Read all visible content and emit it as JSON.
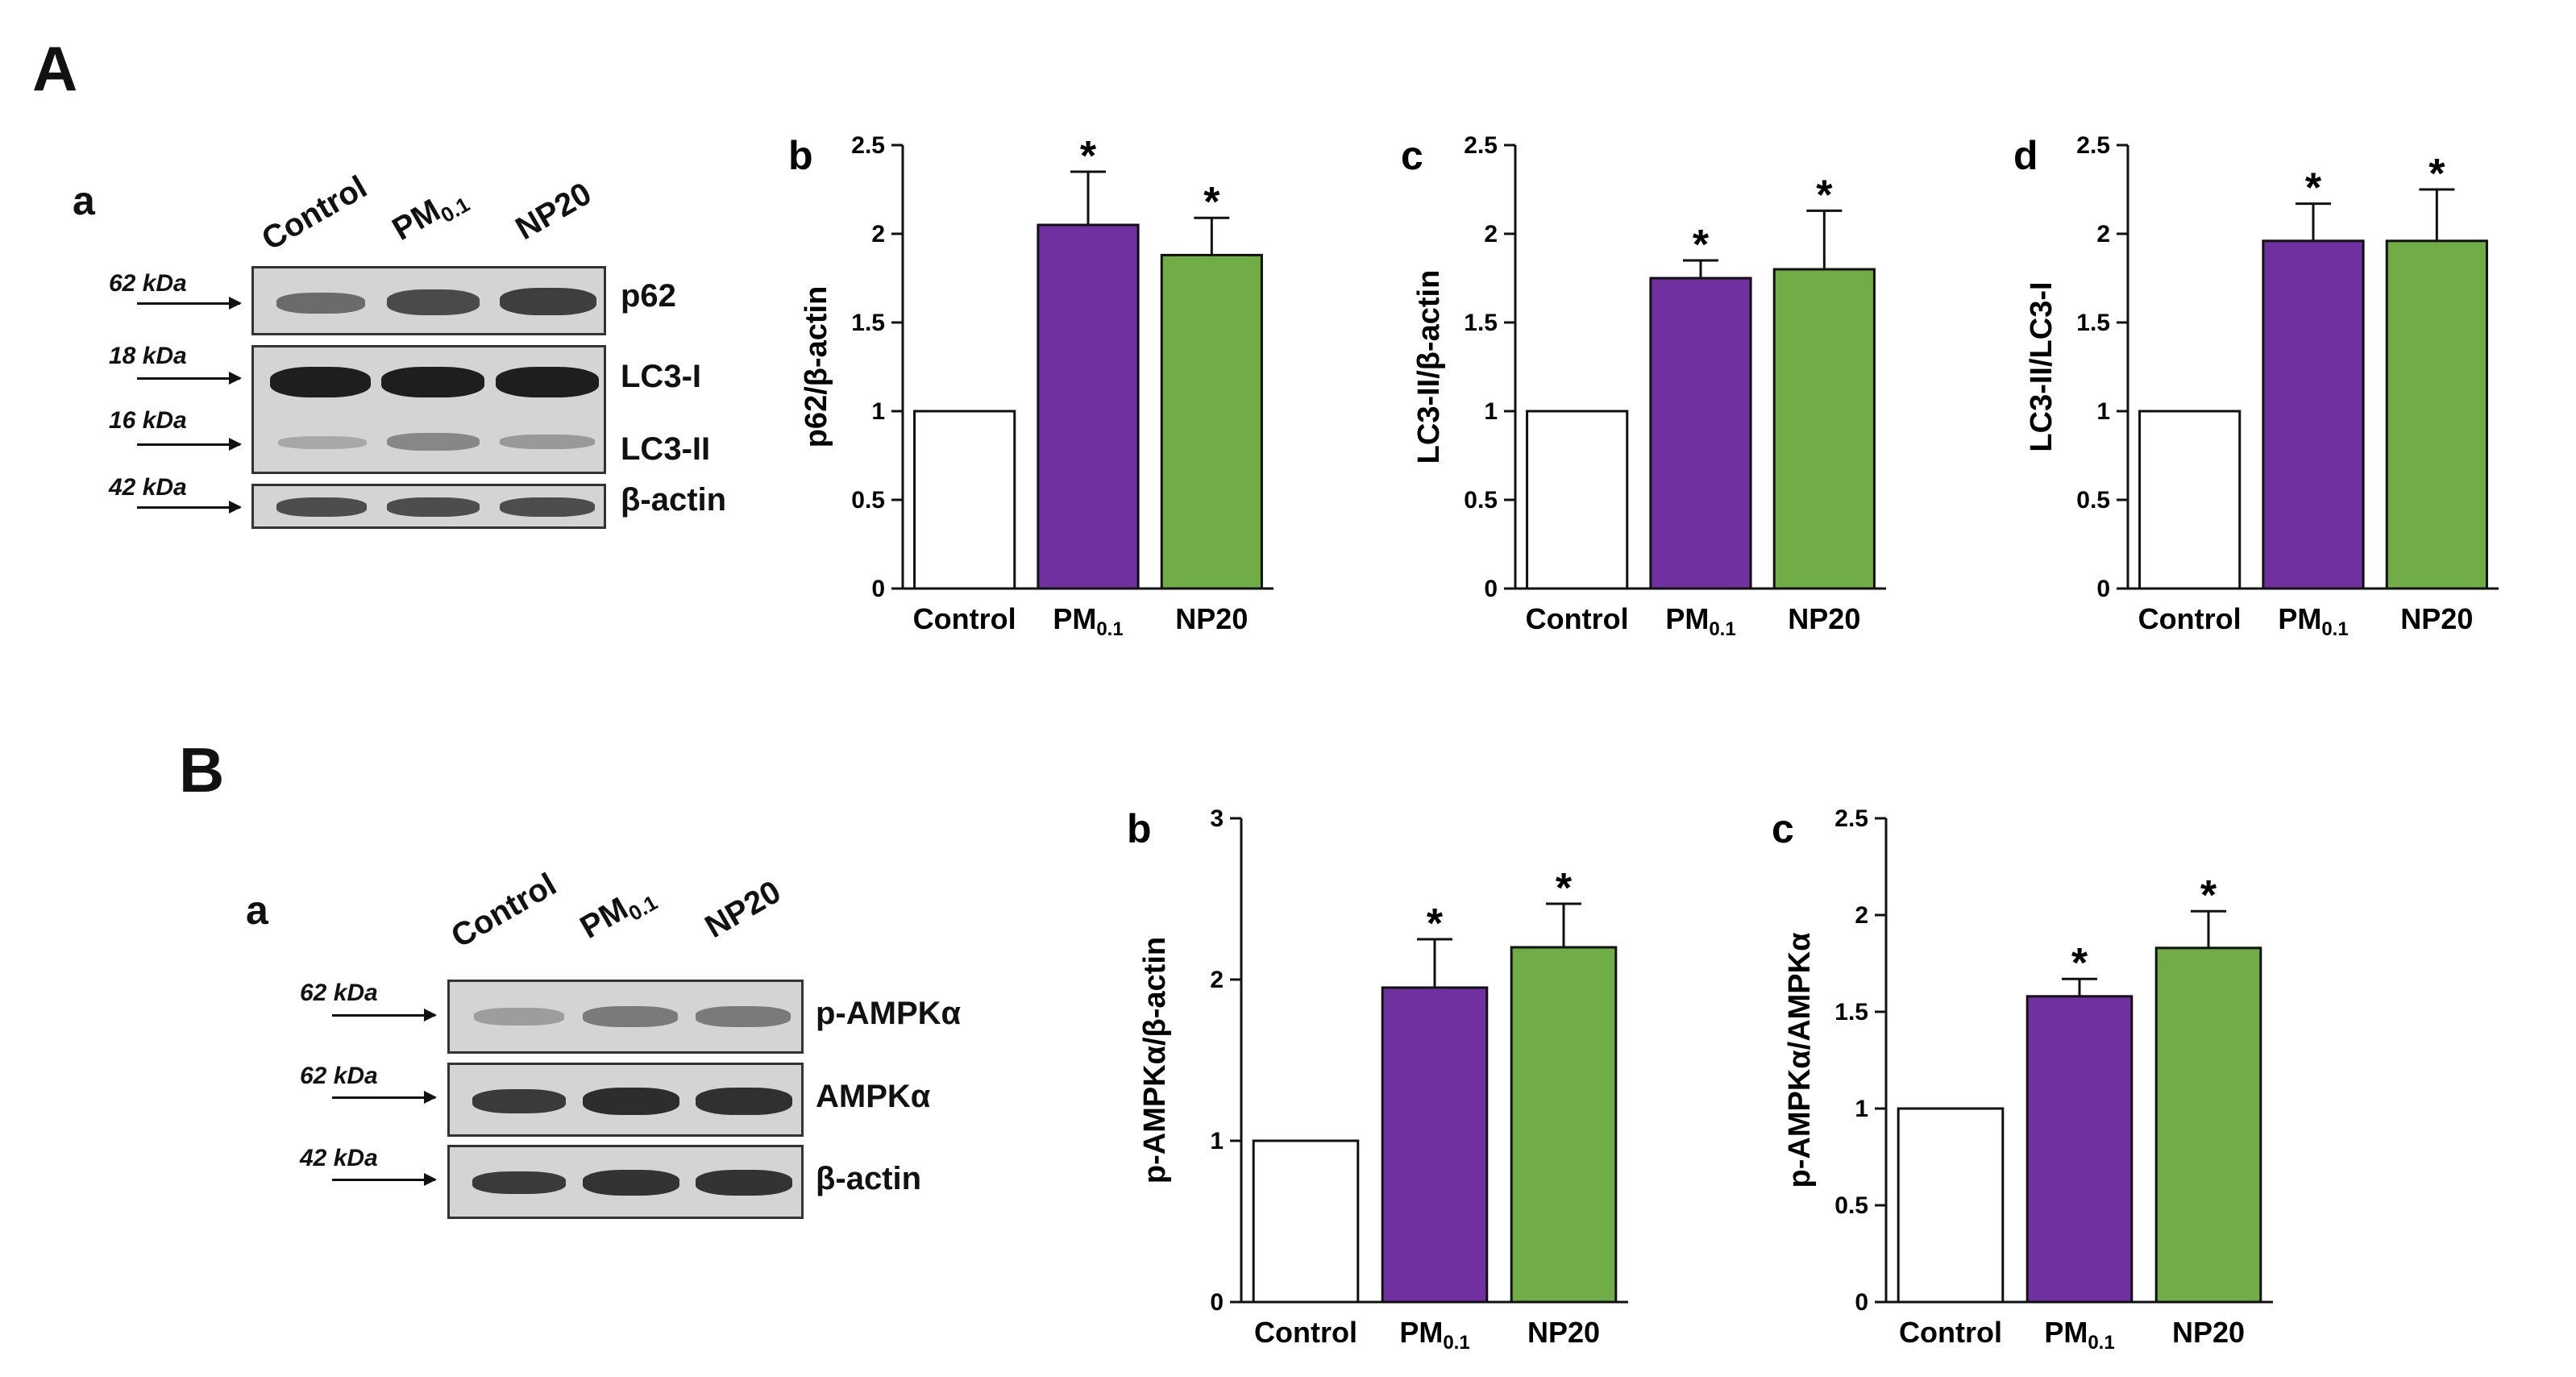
{
  "panels": {
    "A": "A",
    "B": "B"
  },
  "lanes": {
    "control": "Control",
    "pm": "PM",
    "pm_sub": "0.1",
    "np20": "NP20"
  },
  "blotA": {
    "letter": "a",
    "rows": [
      {
        "kda": "62 kDa",
        "name": "p62"
      },
      {
        "kda": "18 kDa",
        "name": "LC3-I"
      },
      {
        "kda": "16 kDa",
        "name": "LC3-II"
      },
      {
        "kda": "42 kDa",
        "name": "β-actin"
      }
    ]
  },
  "blotB": {
    "letter": "a",
    "rows": [
      {
        "kda": "62 kDa",
        "name": "p-AMPKα"
      },
      {
        "kda": "62 kDa",
        "name": "AMPKα"
      },
      {
        "kda": "42 kDa",
        "name": "β-actin"
      }
    ]
  },
  "colors": {
    "control": "#ffffff",
    "pm": "#7030a0",
    "np20": "#70ad47"
  },
  "chart_data": [
    {
      "id": "Ab",
      "letter": "b",
      "type": "bar",
      "categories": [
        "Control",
        "PM0.1",
        "NP20"
      ],
      "values": [
        1,
        2.05,
        1.88
      ],
      "errors": [
        0,
        0.3,
        0.21
      ],
      "significant": [
        false,
        true,
        true
      ],
      "ylabel": "p62/β-actin",
      "ylim": [
        0,
        2.5
      ],
      "yticks": [
        "0",
        "0.5",
        "1",
        "1.5",
        "2",
        "2.5"
      ],
      "tickvals": [
        0,
        0.5,
        1,
        1.5,
        2,
        2.5
      ]
    },
    {
      "id": "Ac",
      "letter": "c",
      "type": "bar",
      "categories": [
        "Control",
        "PM0.1",
        "NP20"
      ],
      "values": [
        1,
        1.75,
        1.8
      ],
      "errors": [
        0,
        0.1,
        0.33
      ],
      "significant": [
        false,
        true,
        true
      ],
      "ylabel": "LC3-II/β-actin",
      "ylim": [
        0,
        2.5
      ],
      "yticks": [
        "0",
        "0.5",
        "1",
        "1.5",
        "2",
        "2.5"
      ],
      "tickvals": [
        0,
        0.5,
        1,
        1.5,
        2,
        2.5
      ]
    },
    {
      "id": "Ad",
      "letter": "d",
      "type": "bar",
      "categories": [
        "Control",
        "PM0.1",
        "NP20"
      ],
      "values": [
        1,
        1.96,
        1.96
      ],
      "errors": [
        0,
        0.21,
        0.29
      ],
      "significant": [
        false,
        true,
        true
      ],
      "ylabel": "LC3-II/LC3-I",
      "ylim": [
        0,
        2.5
      ],
      "yticks": [
        "0",
        "0.5",
        "1",
        "1.5",
        "2",
        "2.5"
      ],
      "tickvals": [
        0,
        0.5,
        1,
        1.5,
        2,
        2.5
      ]
    },
    {
      "id": "Bb",
      "letter": "b",
      "type": "bar",
      "categories": [
        "Control",
        "PM0.1",
        "NP20"
      ],
      "values": [
        1,
        1.95,
        2.2
      ],
      "errors": [
        0,
        0.3,
        0.27
      ],
      "significant": [
        false,
        true,
        true
      ],
      "ylabel": "p-AMPKα/β-actin",
      "ylim": [
        0,
        3
      ],
      "yticks": [
        "0",
        "1",
        "2",
        "3"
      ],
      "tickvals": [
        0,
        1,
        2,
        3
      ]
    },
    {
      "id": "Bc",
      "letter": "c",
      "type": "bar",
      "categories": [
        "Control",
        "PM0.1",
        "NP20"
      ],
      "values": [
        1,
        1.58,
        1.83
      ],
      "errors": [
        0,
        0.09,
        0.19
      ],
      "significant": [
        false,
        true,
        true
      ],
      "ylabel": "p-AMPKα/AMPKα",
      "ylim": [
        0,
        2.5
      ],
      "yticks": [
        "0",
        "0.5",
        "1",
        "1.5",
        "2",
        "2.5"
      ],
      "tickvals": [
        0,
        0.5,
        1,
        1.5,
        2,
        2.5
      ]
    }
  ]
}
